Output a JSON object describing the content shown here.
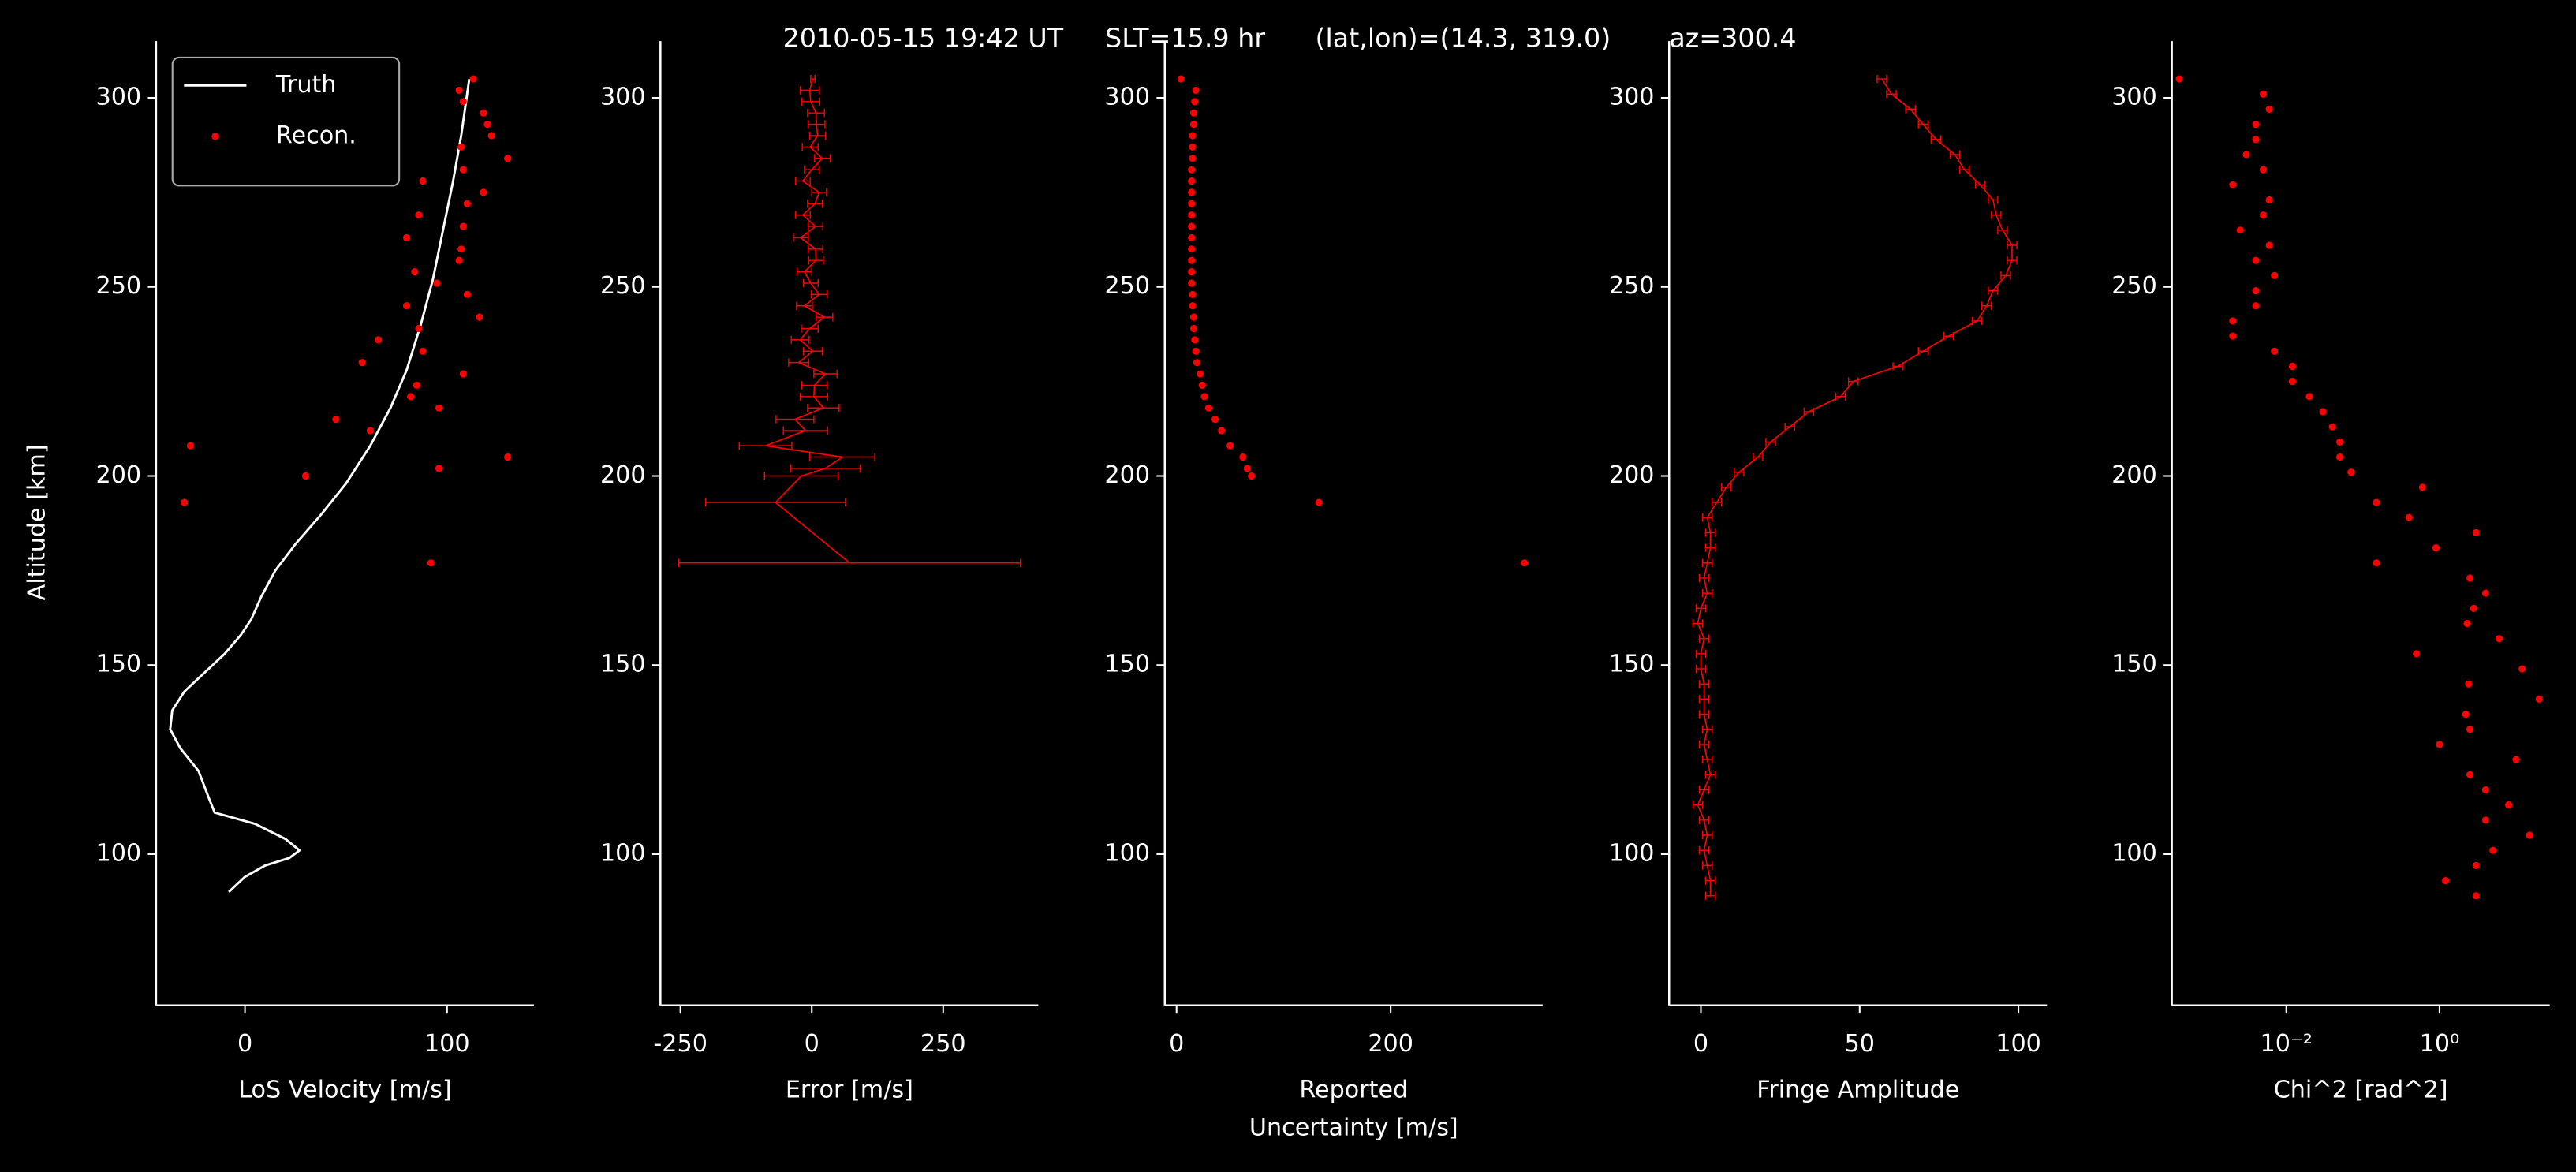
{
  "title": "2010-05-15 19:42 UT     SLT=15.9 hr      (lat,lon)=(14.3, 319.0)       az=300.4",
  "chart_data": [
    {
      "type": "scatter",
      "ylabel": "Altitude [km]",
      "xlabel": "LoS Velocity [m/s]",
      "xlim": [
        -44,
        143
      ],
      "ylim": [
        60,
        315
      ],
      "xticks": [
        0,
        100
      ],
      "yticks": [
        100,
        150,
        200,
        250,
        300
      ],
      "legend": "upper left",
      "series": [
        {
          "name": "Truth",
          "type": "line",
          "color": "#ffffff",
          "x": [
            -8,
            0,
            10,
            22,
            27,
            20,
            5,
            -15,
            -18,
            -23,
            -32,
            -37,
            -36,
            -30,
            -20,
            -10,
            -2,
            3,
            8,
            15,
            25,
            38,
            50,
            62,
            72,
            80,
            87,
            93,
            98,
            103,
            107,
            111
          ],
          "values": [
            90,
            94,
            97,
            99,
            101,
            104,
            108,
            111,
            115,
            122,
            128,
            133,
            138,
            143,
            148,
            153,
            158,
            162,
            168,
            175,
            182,
            190,
            198,
            208,
            218,
            228,
            240,
            252,
            265,
            278,
            290,
            305
          ]
        },
        {
          "name": "Recon.",
          "type": "scatter",
          "color": "#ff0000",
          "x": [
            113,
            106,
            108,
            118,
            120,
            122,
            107,
            130,
            108,
            88,
            118,
            110,
            86,
            108,
            80,
            107,
            106,
            84,
            95,
            110,
            80,
            116,
            86,
            66,
            88,
            58,
            108,
            85,
            82,
            96,
            45,
            62,
            -27,
            130,
            96,
            30,
            -30,
            92
          ],
          "values": [
            305,
            302,
            299,
            296,
            293,
            290,
            287,
            284,
            281,
            278,
            275,
            272,
            269,
            266,
            263,
            260,
            257,
            254,
            251,
            248,
            245,
            242,
            239,
            236,
            233,
            230,
            227,
            224,
            221,
            218,
            215,
            212,
            208,
            205,
            202,
            200,
            193,
            177
          ]
        }
      ]
    },
    {
      "type": "errorbar",
      "xlabel": "Error [m/s]",
      "xlim": [
        -288,
        431
      ],
      "ylim": [
        60,
        315
      ],
      "xticks": [
        -250,
        0,
        250
      ],
      "yticks": [
        100,
        150,
        200,
        250,
        300
      ],
      "series": [
        {
          "color": "#ff0000",
          "x": [
            2,
            -4,
            -2,
            8,
            9,
            11,
            -3,
            20,
            0,
            -17,
            14,
            6,
            -17,
            7,
            -21,
            7,
            8,
            -14,
            -2,
            14,
            -14,
            24,
            -4,
            -22,
            2,
            -25,
            26,
            5,
            4,
            22,
            -32,
            -12,
            -88,
            58,
            26,
            -20,
            -69,
            72
          ],
          "xerr": [
            4,
            18,
            17,
            16,
            16,
            15,
            15,
            15,
            14,
            14,
            14,
            14,
            14,
            14,
            14,
            14,
            14,
            14,
            14,
            15,
            15,
            16,
            16,
            17,
            18,
            19,
            22,
            24,
            26,
            30,
            36,
            42,
            50,
            62,
            66,
            70,
            133,
            325
          ],
          "values": [
            305,
            302,
            299,
            296,
            293,
            290,
            287,
            284,
            281,
            278,
            275,
            272,
            269,
            266,
            263,
            260,
            257,
            254,
            251,
            248,
            245,
            242,
            239,
            236,
            233,
            230,
            227,
            224,
            221,
            218,
            215,
            212,
            208,
            205,
            202,
            200,
            193,
            177
          ]
        }
      ]
    },
    {
      "type": "scatter",
      "xlabel": [
        "Reported",
        "Uncertainty [m/s]"
      ],
      "xlim": [
        -11,
        342
      ],
      "ylim": [
        60,
        315
      ],
      "xticks": [
        0,
        200
      ],
      "yticks": [
        100,
        150,
        200,
        250,
        300
      ],
      "series": [
        {
          "color": "#ff0000",
          "x": [
            4,
            18,
            17,
            16,
            16,
            15,
            15,
            15,
            14,
            14,
            14,
            14,
            14,
            14,
            14,
            14,
            14,
            14,
            14,
            15,
            15,
            16,
            16,
            17,
            18,
            19,
            22,
            24,
            26,
            30,
            36,
            42,
            50,
            62,
            66,
            70,
            133,
            325
          ],
          "values": [
            305,
            302,
            299,
            296,
            293,
            290,
            287,
            284,
            281,
            278,
            275,
            272,
            269,
            266,
            263,
            260,
            257,
            254,
            251,
            248,
            245,
            242,
            239,
            236,
            233,
            230,
            227,
            224,
            221,
            218,
            215,
            212,
            208,
            205,
            202,
            200,
            193,
            177
          ]
        }
      ]
    },
    {
      "type": "errorbar",
      "xlabel": "Fringe Amplitude",
      "xlim": [
        -10,
        109
      ],
      "ylim": [
        60,
        315
      ],
      "xticks": [
        0,
        50,
        100
      ],
      "yticks": [
        100,
        150,
        200,
        250,
        300
      ],
      "series": [
        {
          "color": "#ff0000",
          "xerr": 1.5,
          "x": [
            57,
            60,
            66,
            70,
            74,
            80,
            83,
            88,
            92,
            93,
            95,
            98,
            98,
            96,
            92,
            90,
            87,
            78,
            70,
            62,
            48,
            44,
            34,
            28,
            22,
            18,
            12,
            8,
            5,
            2,
            3,
            3,
            2,
            1,
            2,
            0,
            -1,
            1,
            0,
            0,
            1,
            1,
            1,
            2,
            1,
            2,
            3,
            1,
            -1,
            1,
            2,
            1,
            2,
            3,
            3
          ],
          "values": [
            305,
            301,
            297,
            293,
            289,
            285,
            281,
            277,
            273,
            269,
            265,
            261,
            257,
            253,
            249,
            245,
            241,
            237,
            233,
            229,
            225,
            221,
            217,
            213,
            209,
            205,
            201,
            197,
            193,
            189,
            185,
            181,
            177,
            173,
            169,
            165,
            161,
            157,
            153,
            149,
            145,
            141,
            137,
            133,
            129,
            125,
            121,
            117,
            113,
            109,
            105,
            101,
            97,
            93,
            89
          ]
        }
      ]
    },
    {
      "type": "scatter",
      "xlabel": "Chi^2 [rad^2]",
      "xscale": "log",
      "xlim": [
        0.00032,
        27.5
      ],
      "ylim": [
        60,
        315
      ],
      "xticks": [
        {
          "value": 0.01,
          "label": "10⁻²"
        },
        {
          "value": 1,
          "label": "10⁰"
        }
      ],
      "yticks": [
        100,
        150,
        200,
        250,
        300
      ],
      "series": [
        {
          "color": "#ff0000",
          "x": [
            0.0004,
            0.005,
            0.006,
            0.004,
            0.004,
            0.003,
            0.005,
            0.002,
            0.006,
            0.005,
            0.0025,
            0.006,
            0.004,
            0.007,
            0.004,
            0.004,
            0.002,
            0.002,
            0.007,
            0.012,
            0.012,
            0.02,
            0.03,
            0.04,
            0.05,
            0.05,
            0.07,
            0.6,
            0.15,
            0.4,
            3,
            0.9,
            0.15,
            2.5,
            4,
            2.8,
            2.3,
            6,
            0.5,
            12,
            2.4,
            20,
            2.2,
            2.5,
            1,
            10,
            2.5,
            4,
            8,
            4,
            15,
            5,
            3,
            1.2,
            3
          ],
          "values": [
            305,
            301,
            297,
            293,
            289,
            285,
            281,
            277,
            273,
            269,
            265,
            261,
            257,
            253,
            249,
            245,
            241,
            237,
            233,
            229,
            225,
            221,
            217,
            213,
            209,
            205,
            201,
            197,
            193,
            189,
            185,
            181,
            177,
            173,
            169,
            165,
            161,
            157,
            153,
            149,
            145,
            141,
            137,
            133,
            129,
            125,
            121,
            117,
            113,
            109,
            105,
            101,
            97,
            93,
            89
          ]
        }
      ]
    }
  ]
}
